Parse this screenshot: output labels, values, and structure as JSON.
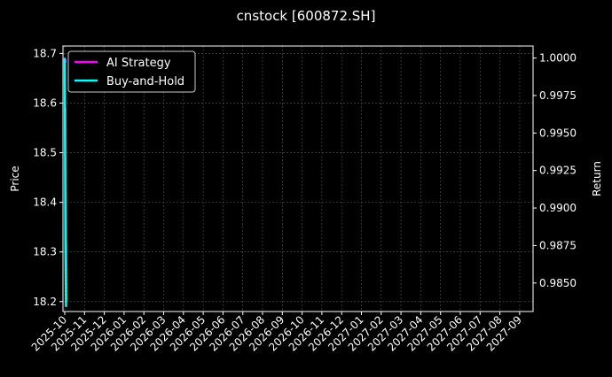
{
  "chart_data": {
    "type": "line",
    "title": "cnstock [600872.SH]",
    "ylabel_left": "Price",
    "ylabel_right": "Return",
    "ylim_left": [
      18.18,
      18.715
    ],
    "ylim_right": [
      0.9831,
      1.0008
    ],
    "yticks_left": [
      "18.2",
      "18.3",
      "18.4",
      "18.5",
      "18.6",
      "18.7"
    ],
    "yticks_right": [
      "0.9850",
      "0.9875",
      "0.9900",
      "0.9925",
      "0.9950",
      "0.9975",
      "1.0000"
    ],
    "xticks": [
      "2025-10",
      "2025-11",
      "2025-12",
      "2026-01",
      "2026-02",
      "2026-03",
      "2026-04",
      "2026-05",
      "2026-06",
      "2026-07",
      "2026-08",
      "2026-09",
      "2026-10",
      "2026-11",
      "2026-12",
      "2027-01",
      "2027-02",
      "2027-03",
      "2027-04",
      "2027-05",
      "2027-06",
      "2027-07",
      "2027-08",
      "2027-09"
    ],
    "grid": true,
    "legend_position": "top-left",
    "price": {
      "x": [
        "2025-10-01",
        "2025-10-02",
        "2025-10-03"
      ],
      "values": [
        18.59,
        18.32,
        18.2
      ],
      "colors": [
        "#ff2020",
        "#20c040"
      ]
    },
    "series": [
      {
        "name": "AI Strategy",
        "axis": "right",
        "color": "#ff00ff",
        "x": [
          "2025-10-01",
          "2025-10-02",
          "2025-10-03"
        ],
        "values": [
          1.0,
          0.9998,
          0.9997
        ]
      },
      {
        "name": "Buy-and-Hold",
        "axis": "right",
        "color": "#00ffff",
        "x": [
          "2025-10-01",
          "2025-10-02",
          "2025-10-03"
        ],
        "values": [
          1.0,
          0.9876,
          0.9834
        ]
      }
    ]
  }
}
